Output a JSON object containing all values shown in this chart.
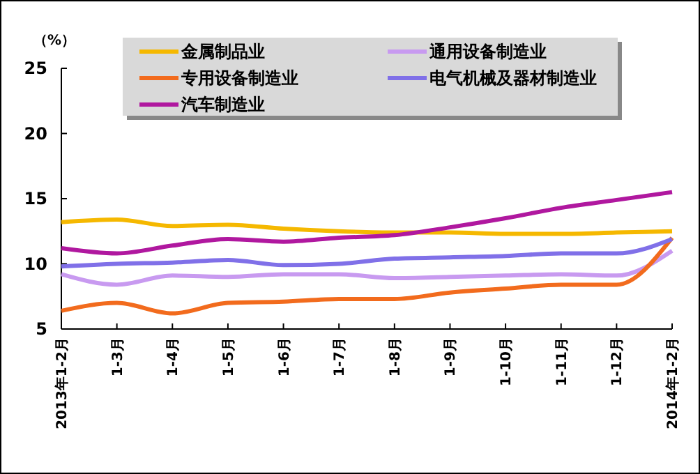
{
  "chart_data": {
    "type": "line",
    "ylabel": "（%）",
    "categories": [
      "2013年1-2月",
      "1-3月",
      "1-4月",
      "1-5月",
      "1-6月",
      "1-7月",
      "1-8月",
      "1-9月",
      "1-10月",
      "1-11月",
      "1-12月",
      "2014年1-2月"
    ],
    "ylim": [
      5,
      25
    ],
    "yticks": [
      5,
      10,
      15,
      20,
      25
    ],
    "grid": false,
    "legend": "top",
    "series": [
      {
        "name": "金属制品业",
        "color": "#f5b800",
        "values": [
          13.2,
          13.4,
          12.9,
          13.0,
          12.7,
          12.5,
          12.4,
          12.4,
          12.3,
          12.3,
          12.4,
          12.5
        ]
      },
      {
        "name": "通用设备制造业",
        "color": "#c89af0",
        "values": [
          9.2,
          8.4,
          9.1,
          9.0,
          9.2,
          9.2,
          8.9,
          9.0,
          9.1,
          9.2,
          9.1,
          11.0
        ]
      },
      {
        "name": "专用设备制造业",
        "color": "#f26b1d",
        "values": [
          6.4,
          7.0,
          6.2,
          7.0,
          7.1,
          7.3,
          7.3,
          7.8,
          8.1,
          8.4,
          8.4,
          12.0
        ]
      },
      {
        "name": "电气机械及器材制造业",
        "color": "#8070e8",
        "values": [
          9.8,
          10.0,
          10.1,
          10.3,
          9.9,
          10.0,
          10.4,
          10.5,
          10.6,
          10.8,
          10.8,
          11.9
        ]
      },
      {
        "name": "汽车制造业",
        "color": "#b0189f",
        "values": [
          11.2,
          10.8,
          11.4,
          11.9,
          11.7,
          12.0,
          12.2,
          12.8,
          13.5,
          14.3,
          14.9,
          15.5
        ]
      }
    ]
  }
}
